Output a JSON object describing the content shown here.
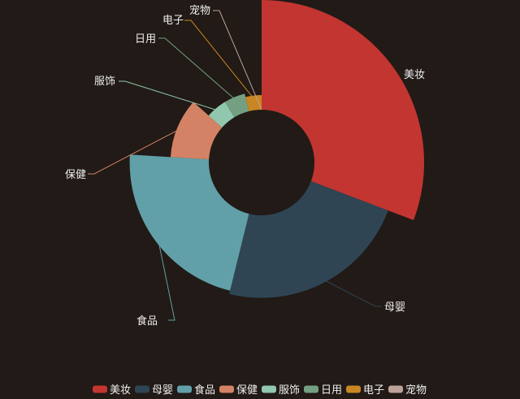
{
  "chart_data": {
    "type": "pie",
    "variant": "rose-donut",
    "title": "",
    "categories": [
      "美妆",
      "母婴",
      "食品",
      "保健",
      "服饰",
      "日用",
      "电子",
      "宠物"
    ],
    "values": [
      32,
      24,
      23,
      11,
      5,
      5,
      4,
      0
    ],
    "colors": [
      "#c23531",
      "#2f4554",
      "#61a0a8",
      "#d48265",
      "#91c7ae",
      "#749f83",
      "#ca8622",
      "#bda29a"
    ],
    "legend": {
      "position": "bottom",
      "items": [
        "美妆",
        "母婴",
        "食品",
        "保健",
        "服饰",
        "日用",
        "电子",
        "宠物"
      ]
    }
  }
}
